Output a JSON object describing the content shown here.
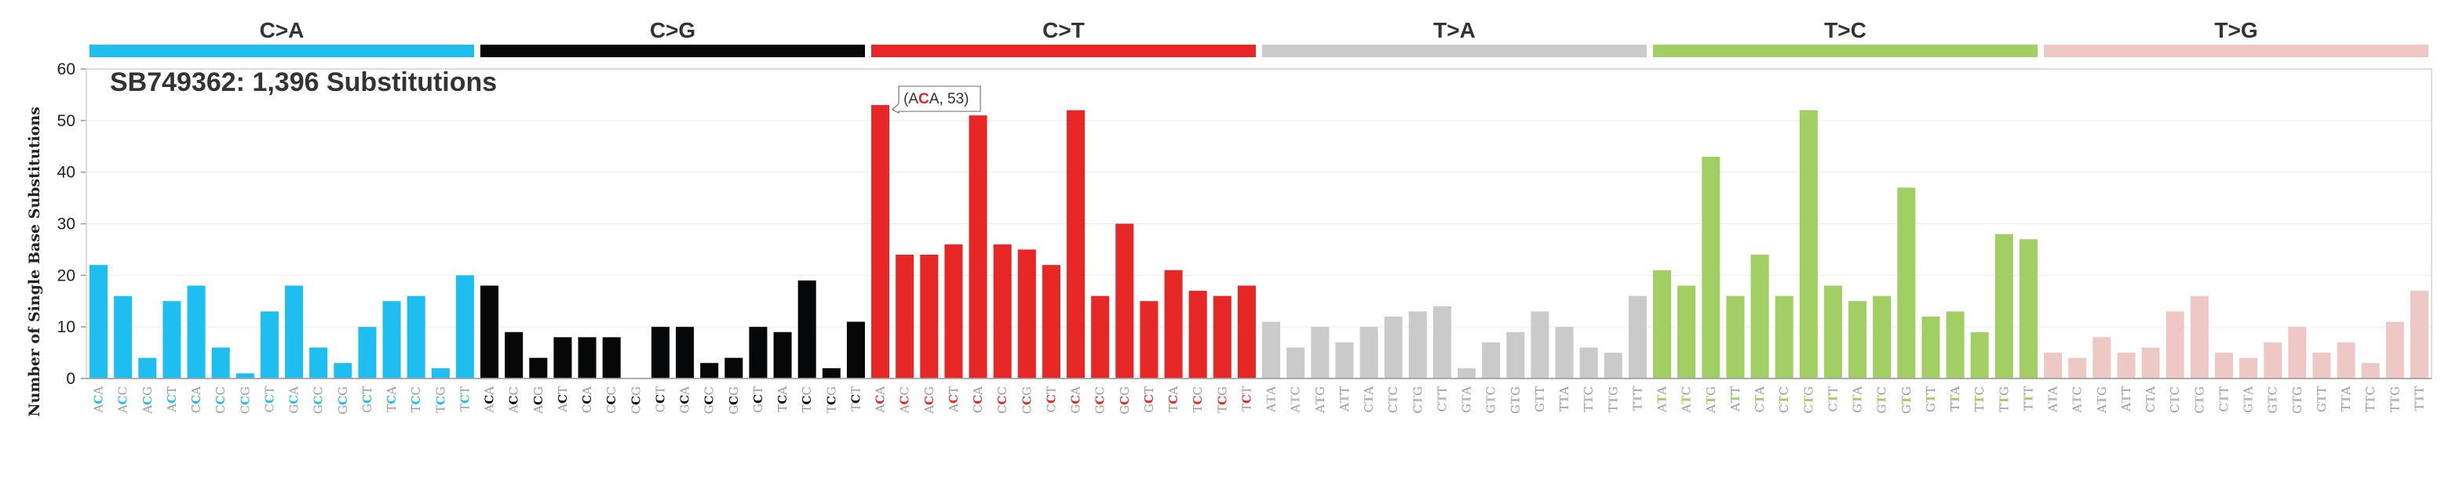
{
  "chart_data": {
    "type": "bar",
    "title": "SB749362: 1,396 Substitutions",
    "ylabel": "Number of Single Base Substitutions",
    "xlabel": "",
    "ylim": [
      0,
      60
    ],
    "yticks": [
      0,
      10,
      20,
      30,
      40,
      50,
      60
    ],
    "grid": true,
    "groups": [
      {
        "name": "C>A",
        "color": "#1ebff0",
        "center": "C",
        "categories": [
          "ACA",
          "ACC",
          "ACG",
          "ACT",
          "CCA",
          "CCC",
          "CCG",
          "CCT",
          "GCA",
          "GCC",
          "GCG",
          "GCT",
          "TCA",
          "TCC",
          "TCG",
          "TCT"
        ],
        "values": [
          22,
          16,
          4,
          15,
          18,
          6,
          1,
          13,
          18,
          6,
          3,
          10,
          15,
          16,
          2,
          20
        ]
      },
      {
        "name": "C>G",
        "color": "#050708",
        "center": "C",
        "categories": [
          "ACA",
          "ACC",
          "ACG",
          "ACT",
          "CCA",
          "CCC",
          "CCG",
          "CCT",
          "GCA",
          "GCC",
          "GCG",
          "GCT",
          "TCA",
          "TCC",
          "TCG",
          "TCT"
        ],
        "values": [
          18,
          9,
          4,
          8,
          8,
          8,
          0,
          10,
          10,
          3,
          4,
          10,
          9,
          19,
          2,
          11
        ]
      },
      {
        "name": "C>T",
        "color": "#e62725",
        "center": "C",
        "categories": [
          "ACA",
          "ACC",
          "ACG",
          "ACT",
          "CCA",
          "CCC",
          "CCG",
          "CCT",
          "GCA",
          "GCC",
          "GCG",
          "GCT",
          "TCA",
          "TCC",
          "TCG",
          "TCT"
        ],
        "values": [
          53,
          24,
          24,
          26,
          51,
          26,
          25,
          22,
          52,
          16,
          30,
          15,
          21,
          17,
          16,
          18
        ]
      },
      {
        "name": "T>A",
        "color": "#cbcacb",
        "center": "T",
        "categories": [
          "ATA",
          "ATC",
          "ATG",
          "ATT",
          "CTA",
          "CTC",
          "CTG",
          "CTT",
          "GTA",
          "GTC",
          "GTG",
          "GTT",
          "TTA",
          "TTC",
          "TTG",
          "TTT"
        ],
        "values": [
          11,
          6,
          10,
          7,
          10,
          12,
          13,
          14,
          2,
          7,
          9,
          13,
          10,
          6,
          5,
          16
        ]
      },
      {
        "name": "T>C",
        "color": "#a1cf64",
        "center": "T",
        "categories": [
          "ATA",
          "ATC",
          "ATG",
          "ATT",
          "CTA",
          "CTC",
          "CTG",
          "CTT",
          "GTA",
          "GTC",
          "GTG",
          "GTT",
          "TTA",
          "TTC",
          "TTG",
          "TTT"
        ],
        "values": [
          21,
          18,
          43,
          16,
          24,
          16,
          52,
          18,
          15,
          16,
          37,
          12,
          13,
          9,
          28,
          27
        ]
      },
      {
        "name": "T>G",
        "color": "#edc8c5",
        "center": "T",
        "categories": [
          "ATA",
          "ATC",
          "ATG",
          "ATT",
          "CTA",
          "CTC",
          "CTG",
          "CTT",
          "GTA",
          "GTC",
          "GTG",
          "GTT",
          "TTA",
          "TTC",
          "TTG",
          "TTT"
        ],
        "values": [
          5,
          4,
          8,
          5,
          6,
          13,
          16,
          5,
          4,
          7,
          10,
          5,
          7,
          3,
          11,
          17
        ]
      }
    ],
    "tooltip": {
      "prefix": "(A",
      "center": "C",
      "suffix": "A, 53)"
    }
  }
}
